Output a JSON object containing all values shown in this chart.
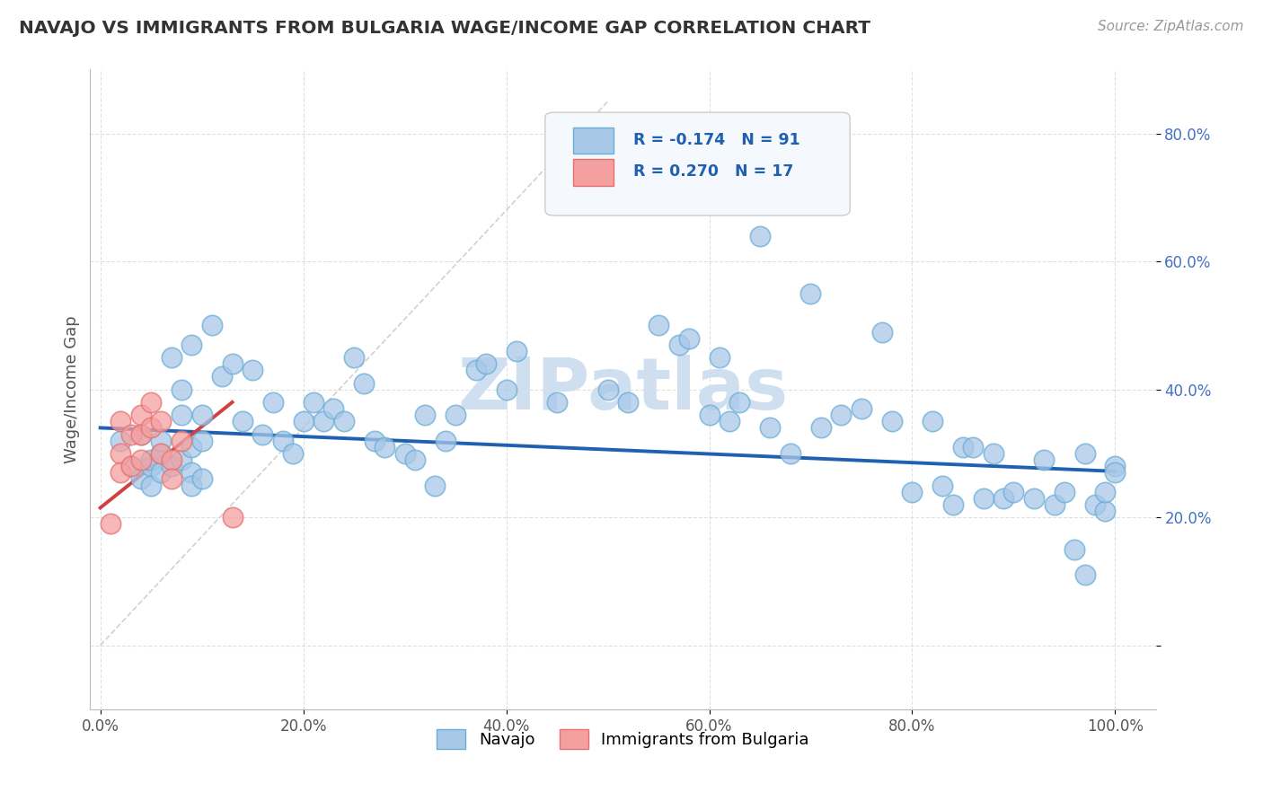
{
  "title": "NAVAJO VS IMMIGRANTS FROM BULGARIA WAGE/INCOME GAP CORRELATION CHART",
  "source": "Source: ZipAtlas.com",
  "ylabel": "Wage/Income Gap",
  "navajo_R": -0.174,
  "navajo_N": 91,
  "bulgaria_R": 0.27,
  "bulgaria_N": 17,
  "navajo_color": "#a8c8e8",
  "bulgaria_color": "#f4a0a0",
  "navajo_edge_color": "#6baed6",
  "bulgaria_edge_color": "#e87070",
  "navajo_trend_color": "#2060b0",
  "bulgaria_trend_color": "#d04040",
  "ref_line_color": "#cccccc",
  "watermark": "ZIPatlas",
  "watermark_color": "#d0dff0",
  "background_color": "#ffffff",
  "legend_text_color": "#2060b0",
  "ytick_color": "#4472c4",
  "navajo_x": [
    0.02,
    0.03,
    0.04,
    0.04,
    0.05,
    0.05,
    0.05,
    0.06,
    0.06,
    0.06,
    0.07,
    0.07,
    0.08,
    0.08,
    0.08,
    0.09,
    0.09,
    0.09,
    0.09,
    0.1,
    0.1,
    0.1,
    0.11,
    0.12,
    0.13,
    0.14,
    0.15,
    0.16,
    0.17,
    0.18,
    0.19,
    0.2,
    0.21,
    0.22,
    0.23,
    0.24,
    0.25,
    0.26,
    0.27,
    0.28,
    0.3,
    0.31,
    0.32,
    0.33,
    0.34,
    0.35,
    0.37,
    0.38,
    0.4,
    0.41,
    0.45,
    0.5,
    0.52,
    0.55,
    0.57,
    0.58,
    0.6,
    0.61,
    0.62,
    0.63,
    0.65,
    0.66,
    0.68,
    0.7,
    0.71,
    0.73,
    0.75,
    0.77,
    0.78,
    0.8,
    0.82,
    0.83,
    0.84,
    0.85,
    0.86,
    0.87,
    0.88,
    0.89,
    0.9,
    0.92,
    0.93,
    0.94,
    0.95,
    0.96,
    0.97,
    0.97,
    0.98,
    0.99,
    0.99,
    1.0,
    1.0
  ],
  "navajo_y": [
    0.32,
    0.28,
    0.26,
    0.33,
    0.28,
    0.29,
    0.25,
    0.3,
    0.32,
    0.27,
    0.45,
    0.28,
    0.4,
    0.36,
    0.29,
    0.31,
    0.27,
    0.47,
    0.25,
    0.26,
    0.32,
    0.36,
    0.5,
    0.42,
    0.44,
    0.35,
    0.43,
    0.33,
    0.38,
    0.32,
    0.3,
    0.35,
    0.38,
    0.35,
    0.37,
    0.35,
    0.45,
    0.41,
    0.32,
    0.31,
    0.3,
    0.29,
    0.36,
    0.25,
    0.32,
    0.36,
    0.43,
    0.44,
    0.4,
    0.46,
    0.38,
    0.4,
    0.38,
    0.5,
    0.47,
    0.48,
    0.36,
    0.45,
    0.35,
    0.38,
    0.64,
    0.34,
    0.3,
    0.55,
    0.34,
    0.36,
    0.37,
    0.49,
    0.35,
    0.24,
    0.35,
    0.25,
    0.22,
    0.31,
    0.31,
    0.23,
    0.3,
    0.23,
    0.24,
    0.23,
    0.29,
    0.22,
    0.24,
    0.15,
    0.11,
    0.3,
    0.22,
    0.21,
    0.24,
    0.28,
    0.27
  ],
  "bulgaria_x": [
    0.01,
    0.02,
    0.02,
    0.02,
    0.03,
    0.03,
    0.04,
    0.04,
    0.04,
    0.05,
    0.05,
    0.06,
    0.06,
    0.07,
    0.07,
    0.08,
    0.13
  ],
  "bulgaria_y": [
    0.19,
    0.35,
    0.3,
    0.27,
    0.33,
    0.28,
    0.36,
    0.33,
    0.29,
    0.38,
    0.34,
    0.35,
    0.3,
    0.29,
    0.26,
    0.32,
    0.2
  ],
  "navajo_trend_x": [
    0.0,
    1.0
  ],
  "navajo_trend_y": [
    0.34,
    0.272
  ],
  "bulgaria_trend_x": [
    0.0,
    0.13
  ],
  "bulgaria_trend_y": [
    0.215,
    0.38
  ],
  "ref_line_x": [
    0.0,
    0.5
  ],
  "ref_line_y": [
    0.0,
    0.85
  ],
  "xlim": [
    -0.01,
    1.04
  ],
  "ylim": [
    -0.1,
    0.9
  ],
  "xticks": [
    0.0,
    0.2,
    0.4,
    0.6,
    0.8,
    1.0
  ],
  "yticks": [
    0.0,
    0.2,
    0.4,
    0.6,
    0.8
  ]
}
